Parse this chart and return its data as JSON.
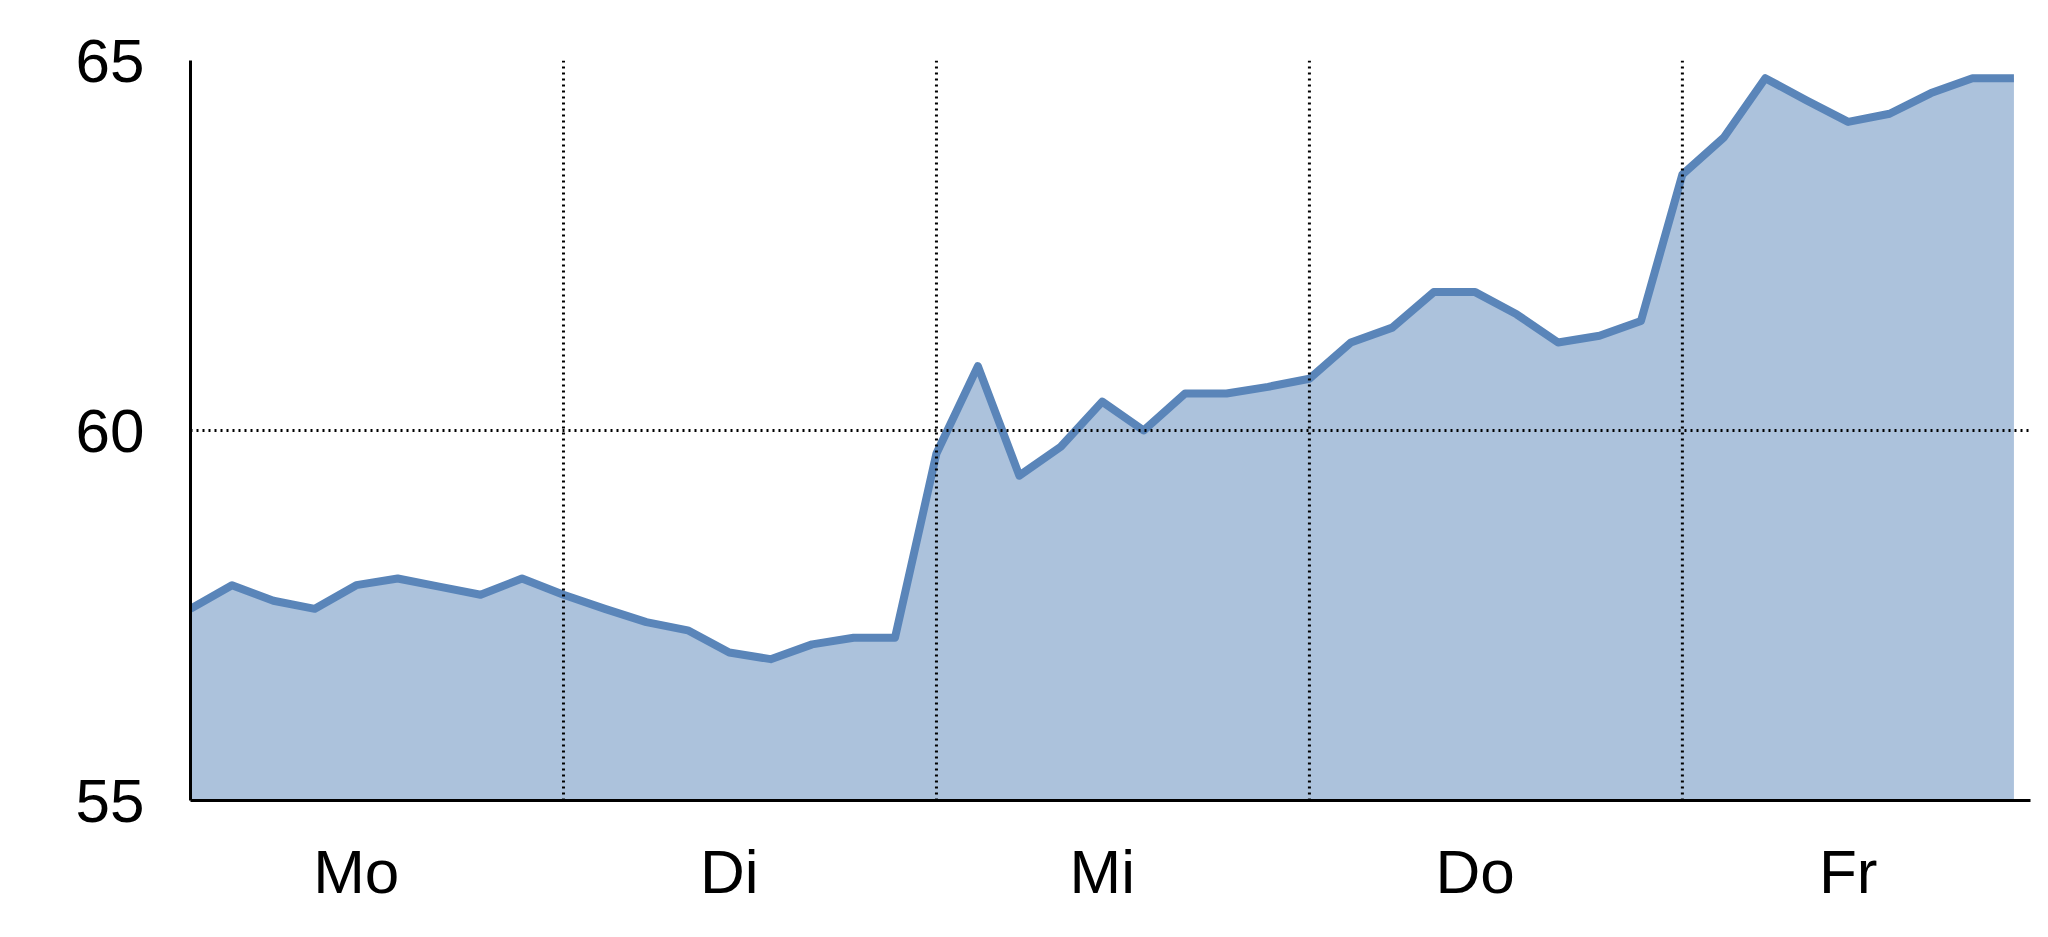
{
  "chart_data": {
    "type": "area",
    "categories": [
      null,
      null,
      null,
      null,
      "Mo",
      null,
      null,
      null,
      null,
      null,
      null,
      null,
      null,
      "Di",
      null,
      null,
      null,
      null,
      null,
      null,
      null,
      null,
      "Mi",
      null,
      null,
      null,
      null,
      null,
      null,
      null,
      null,
      "Do",
      null,
      null,
      null,
      null,
      null,
      null,
      null,
      null,
      "Fr",
      null,
      null,
      null,
      null
    ],
    "series": [
      {
        "color": "#5a85b9",
        "values": [
          57.59,
          57.91,
          57.7,
          57.59,
          57.91,
          58.0,
          57.89,
          57.78,
          58.0,
          57.78,
          57.59,
          57.41,
          57.3,
          57.0,
          56.91,
          57.11,
          57.2,
          57.2,
          59.69,
          60.87,
          59.39,
          59.78,
          60.39,
          60.0,
          60.5,
          60.5,
          60.59,
          60.7,
          61.19,
          61.39,
          61.87,
          61.87,
          61.57,
          61.19,
          61.28,
          61.48,
          63.46,
          63.96,
          64.76,
          64.46,
          64.17,
          64.28,
          64.56,
          64.76,
          64.76
        ]
      }
    ],
    "ylim": [
      55,
      65
    ],
    "yticks": [
      55,
      60,
      65
    ],
    "ref_lines": [
      {
        "axis": "y",
        "value": 60,
        "line_style": "dotted"
      }
    ],
    "grid": "x"
  }
}
